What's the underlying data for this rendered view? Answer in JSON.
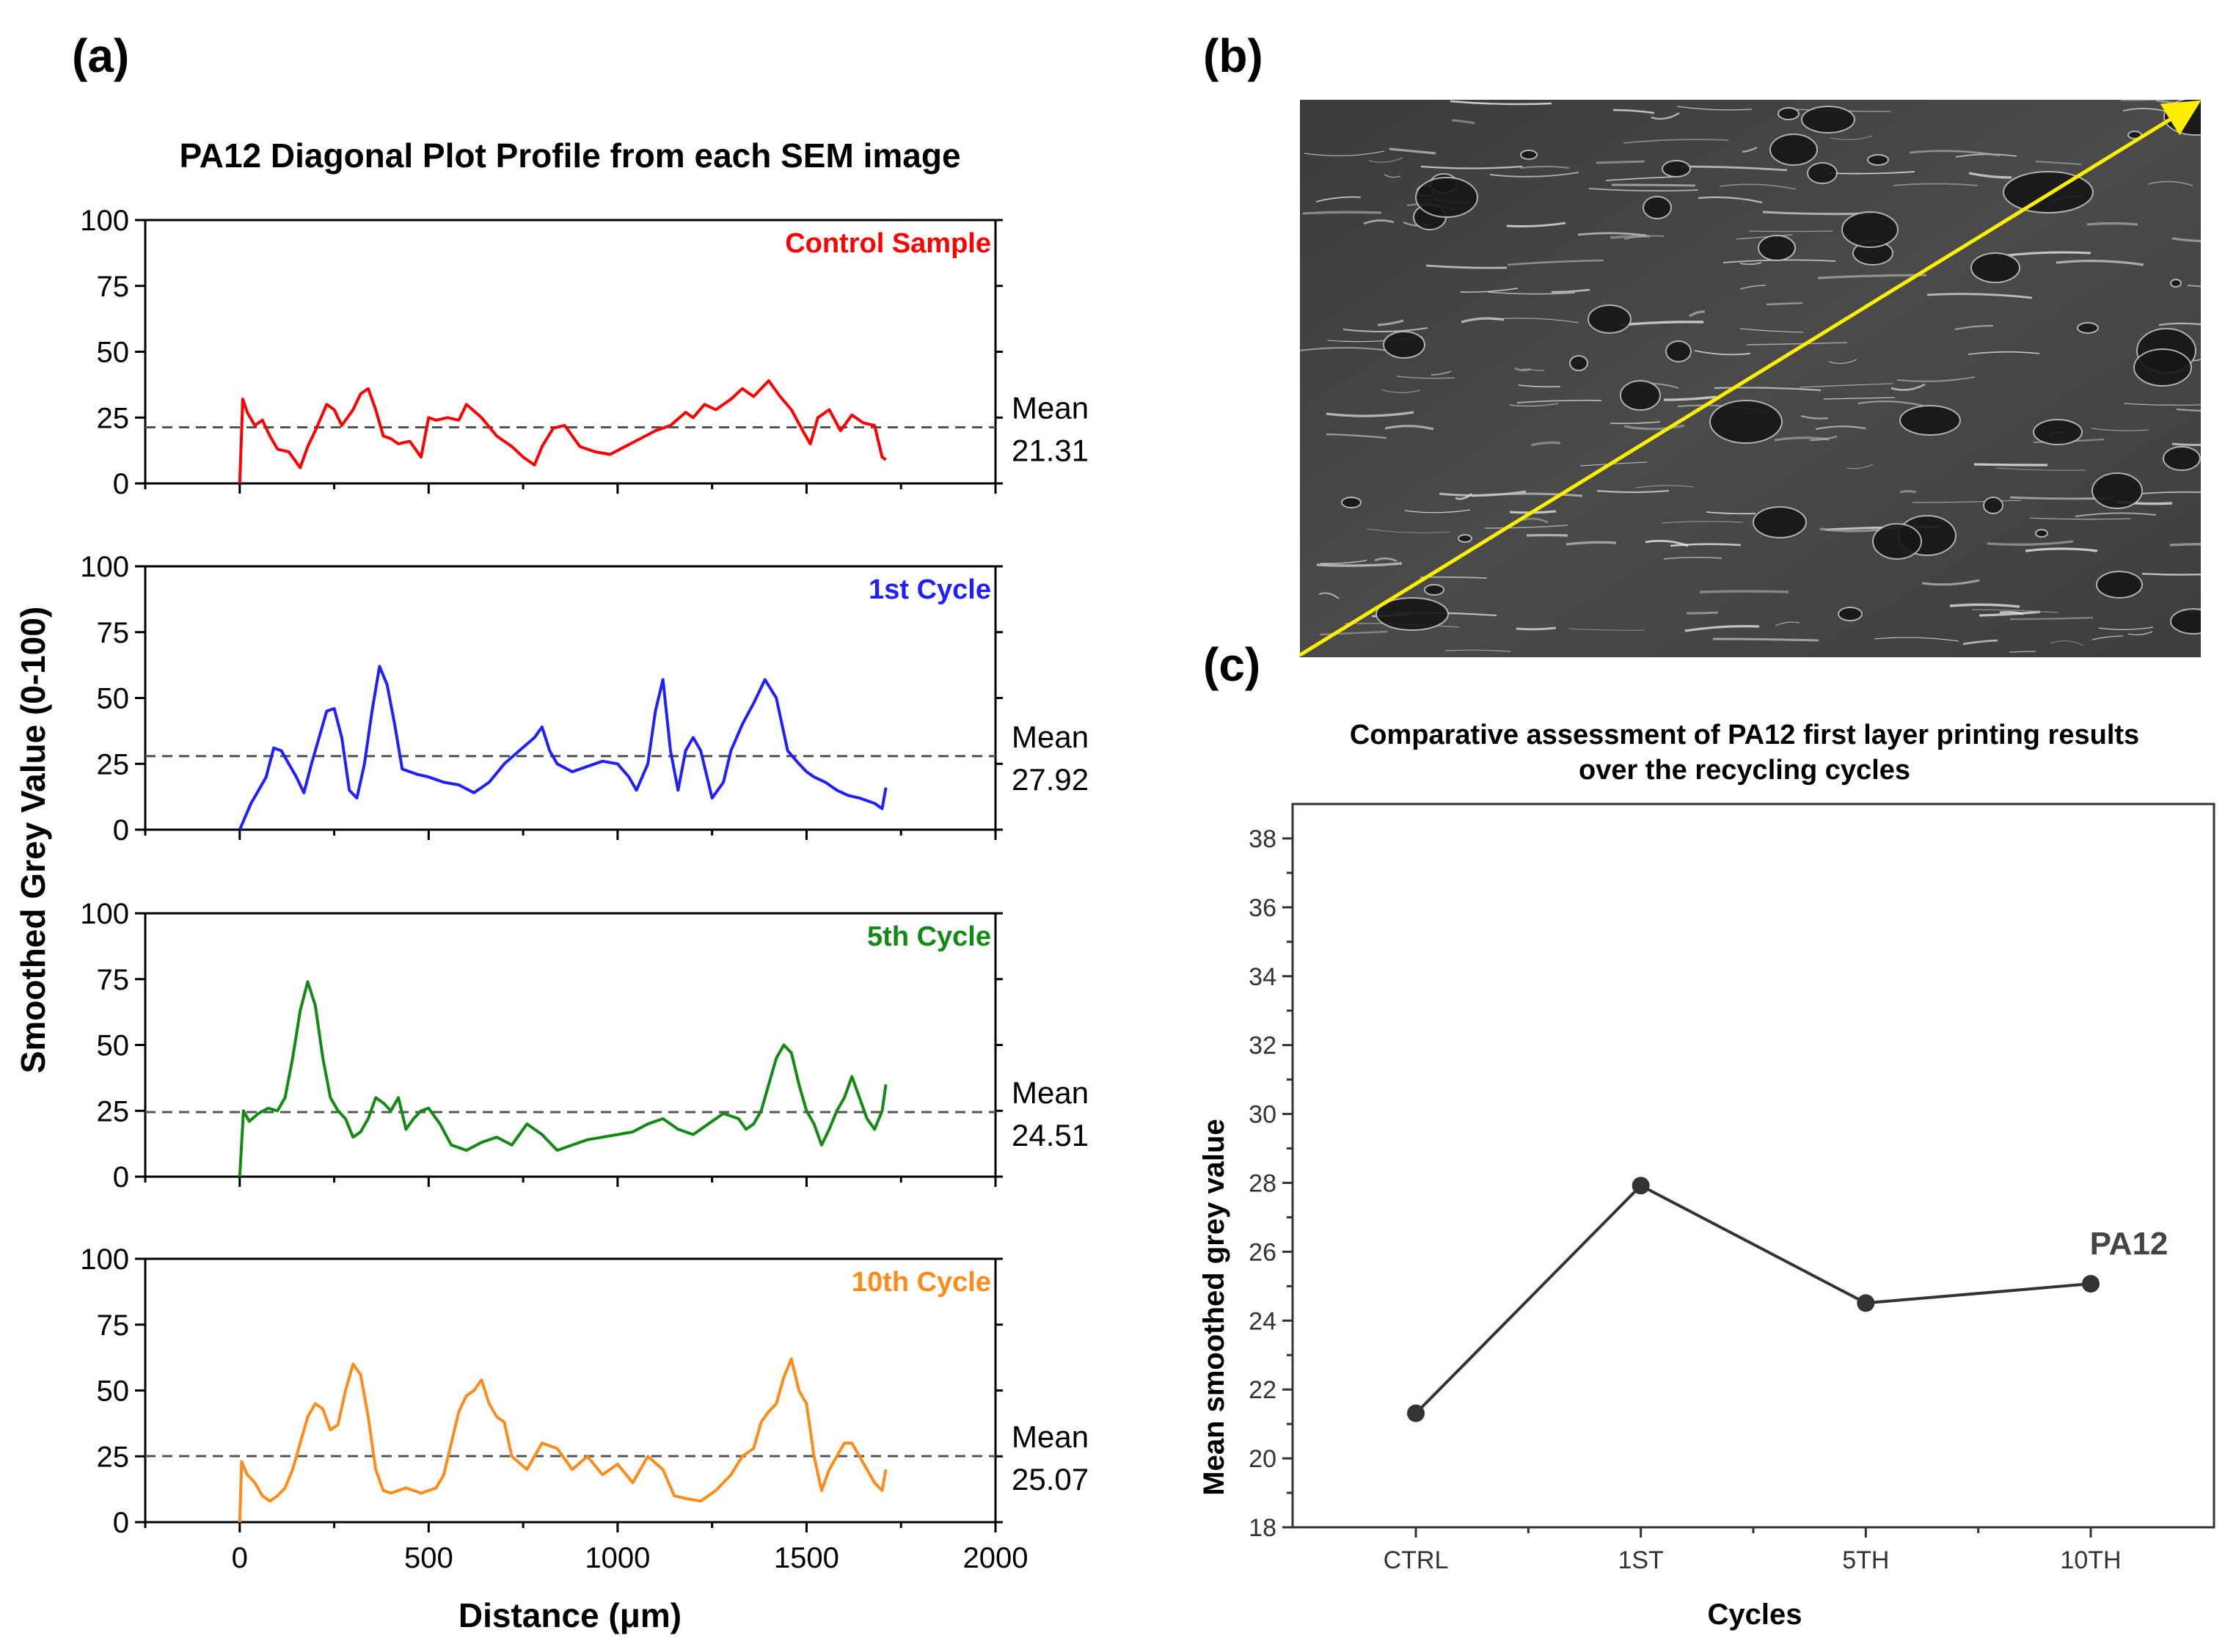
{
  "panels": {
    "a": "(a)",
    "b": "(b)",
    "c": "(c)"
  },
  "colors": {
    "control": "#ff0000",
    "cycle1": "#1f1fff",
    "cycle5": "#138a13",
    "cycle10": "#ff8c1a",
    "mean_line": "#555555",
    "summary_line": "#333333",
    "sem_arrow": "#ffee00"
  },
  "chart_data": [
    {
      "type": "line",
      "id": "profiles",
      "title": "PA12 Diagonal Plot Profile from each SEM image",
      "xlabel": "Distance (μm)",
      "ylabel": "Smoothed Grey Value (0-100)",
      "xlim": [
        -250,
        2000
      ],
      "ylim": [
        0,
        100
      ],
      "xticks": [
        0,
        500,
        1000,
        1500,
        2000
      ],
      "yticks": [
        0,
        25,
        50,
        75,
        100
      ],
      "mean_label": "Mean",
      "series": [
        {
          "name": "Control Sample",
          "color_key": "control",
          "mean": 21.31,
          "mean_text": "21.31",
          "x": [
            0,
            8,
            20,
            40,
            60,
            80,
            100,
            130,
            160,
            180,
            200,
            230,
            250,
            270,
            300,
            320,
            340,
            360,
            380,
            400,
            420,
            450,
            480,
            500,
            520,
            550,
            580,
            600,
            640,
            680,
            700,
            720,
            750,
            780,
            800,
            830,
            860,
            900,
            940,
            980,
            1020,
            1060,
            1100,
            1140,
            1180,
            1200,
            1230,
            1260,
            1300,
            1330,
            1360,
            1400,
            1430,
            1460,
            1490,
            1510,
            1530,
            1560,
            1590,
            1620,
            1650,
            1680,
            1700,
            1710
          ],
          "y": [
            0,
            32,
            27,
            22,
            24,
            18,
            13,
            12,
            6,
            14,
            20,
            30,
            28,
            22,
            28,
            34,
            36,
            28,
            18,
            17,
            15,
            16,
            10,
            25,
            24,
            25,
            24,
            30,
            25,
            18,
            16,
            14,
            10,
            7,
            14,
            21,
            22,
            14,
            12,
            11,
            14,
            17,
            20,
            22,
            27,
            25,
            30,
            28,
            32,
            36,
            33,
            39,
            33,
            28,
            20,
            15,
            25,
            28,
            20,
            26,
            23,
            22,
            10,
            9
          ]
        },
        {
          "name": "1st Cycle",
          "color_key": "cycle1",
          "mean": 27.92,
          "mean_text": "27.92",
          "x": [
            0,
            15,
            30,
            50,
            70,
            90,
            110,
            130,
            150,
            170,
            190,
            210,
            230,
            250,
            270,
            290,
            310,
            330,
            350,
            370,
            390,
            410,
            430,
            450,
            470,
            500,
            540,
            580,
            620,
            660,
            700,
            740,
            780,
            800,
            820,
            840,
            880,
            920,
            960,
            1000,
            1030,
            1050,
            1080,
            1100,
            1120,
            1140,
            1160,
            1180,
            1200,
            1220,
            1250,
            1280,
            1300,
            1330,
            1360,
            1390,
            1420,
            1450,
            1480,
            1500,
            1520,
            1550,
            1580,
            1610,
            1640,
            1680,
            1700,
            1710
          ],
          "y": [
            0,
            5,
            10,
            15,
            20,
            31,
            30,
            25,
            20,
            14,
            25,
            35,
            45,
            46,
            35,
            15,
            12,
            25,
            45,
            62,
            55,
            40,
            23,
            22,
            21,
            20,
            18,
            17,
            14,
            18,
            25,
            30,
            35,
            39,
            30,
            25,
            22,
            24,
            26,
            25,
            20,
            15,
            25,
            45,
            57,
            30,
            15,
            30,
            35,
            30,
            12,
            18,
            30,
            40,
            48,
            57,
            50,
            30,
            25,
            22,
            20,
            18,
            15,
            13,
            12,
            10,
            8,
            16
          ]
        },
        {
          "name": "5th Cycle",
          "color_key": "cycle5",
          "mean": 24.51,
          "mean_text": "24.51",
          "x": [
            0,
            10,
            25,
            50,
            75,
            100,
            120,
            140,
            160,
            180,
            200,
            220,
            240,
            260,
            280,
            300,
            320,
            340,
            360,
            380,
            400,
            420,
            440,
            460,
            480,
            500,
            530,
            560,
            600,
            640,
            680,
            720,
            760,
            800,
            840,
            880,
            920,
            960,
            1000,
            1040,
            1080,
            1120,
            1160,
            1200,
            1240,
            1280,
            1320,
            1340,
            1360,
            1380,
            1400,
            1420,
            1440,
            1460,
            1480,
            1500,
            1520,
            1540,
            1560,
            1580,
            1600,
            1620,
            1640,
            1660,
            1680,
            1700,
            1710
          ],
          "y": [
            0,
            25,
            21,
            24,
            26,
            25,
            30,
            45,
            63,
            74,
            65,
            45,
            30,
            25,
            22,
            15,
            17,
            22,
            30,
            28,
            25,
            30,
            18,
            22,
            25,
            26,
            20,
            12,
            10,
            13,
            15,
            12,
            20,
            16,
            10,
            12,
            14,
            15,
            16,
            17,
            20,
            22,
            18,
            16,
            20,
            24,
            22,
            18,
            20,
            25,
            35,
            45,
            50,
            47,
            35,
            25,
            20,
            12,
            18,
            25,
            30,
            38,
            30,
            22,
            18,
            25,
            35
          ]
        },
        {
          "name": "10th Cycle",
          "color_key": "cycle10",
          "mean": 25.07,
          "mean_text": "25.07",
          "x": [
            0,
            5,
            20,
            40,
            60,
            80,
            100,
            120,
            140,
            160,
            180,
            200,
            220,
            240,
            260,
            280,
            300,
            320,
            340,
            360,
            380,
            400,
            420,
            440,
            460,
            480,
            500,
            520,
            540,
            560,
            580,
            600,
            620,
            640,
            660,
            680,
            700,
            720,
            760,
            800,
            840,
            880,
            920,
            960,
            1000,
            1040,
            1080,
            1120,
            1150,
            1180,
            1220,
            1260,
            1300,
            1330,
            1360,
            1380,
            1400,
            1420,
            1440,
            1460,
            1480,
            1500,
            1520,
            1540,
            1560,
            1580,
            1600,
            1620,
            1640,
            1660,
            1680,
            1700,
            1710
          ],
          "y": [
            0,
            23,
            18,
            15,
            10,
            8,
            10,
            13,
            20,
            30,
            40,
            45,
            43,
            35,
            37,
            50,
            60,
            56,
            40,
            20,
            12,
            11,
            12,
            13,
            12,
            11,
            12,
            13,
            18,
            30,
            42,
            48,
            50,
            54,
            45,
            40,
            38,
            25,
            20,
            30,
            28,
            20,
            25,
            18,
            22,
            15,
            25,
            20,
            10,
            9,
            8,
            12,
            18,
            25,
            28,
            38,
            42,
            45,
            55,
            62,
            50,
            45,
            25,
            12,
            20,
            25,
            30,
            30,
            25,
            20,
            15,
            12,
            20
          ]
        }
      ]
    },
    {
      "type": "line",
      "id": "summary",
      "title": "Comparative assessment of PA12 first layer printing results",
      "title_line2": "over the recycling cycles",
      "xlabel": "Cycles",
      "ylabel": "Mean smoothed grey value",
      "categories": [
        "CTRL",
        "1ST",
        "5TH",
        "10TH"
      ],
      "values": [
        21.31,
        27.92,
        24.51,
        25.07
      ],
      "ylim": [
        18,
        39
      ],
      "yticks": [
        18,
        20,
        22,
        24,
        26,
        28,
        30,
        32,
        34,
        36,
        38
      ],
      "series_label": "PA12"
    }
  ]
}
